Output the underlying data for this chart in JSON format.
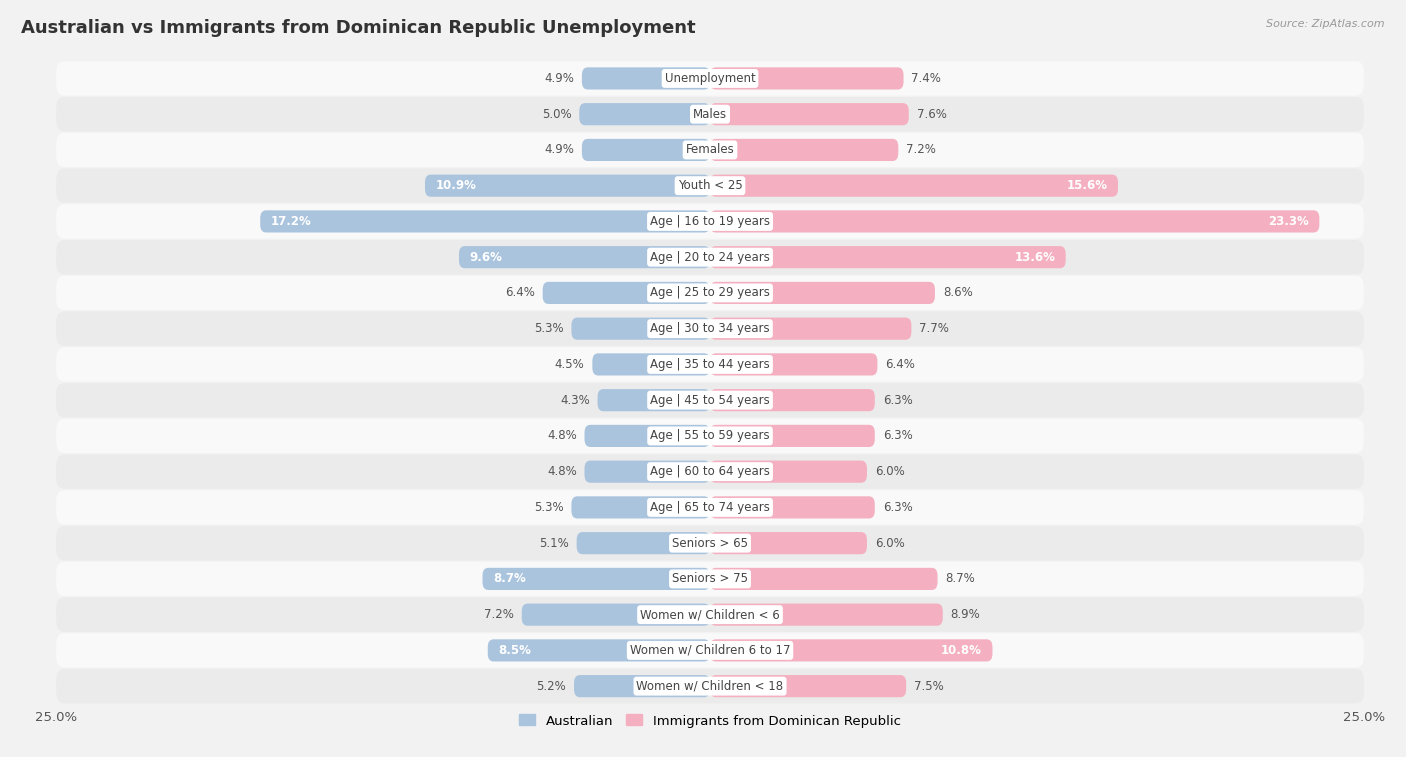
{
  "title": "Australian vs Immigrants from Dominican Republic Unemployment",
  "source": "Source: ZipAtlas.com",
  "categories": [
    "Unemployment",
    "Males",
    "Females",
    "Youth < 25",
    "Age | 16 to 19 years",
    "Age | 20 to 24 years",
    "Age | 25 to 29 years",
    "Age | 30 to 34 years",
    "Age | 35 to 44 years",
    "Age | 45 to 54 years",
    "Age | 55 to 59 years",
    "Age | 60 to 64 years",
    "Age | 65 to 74 years",
    "Seniors > 65",
    "Seniors > 75",
    "Women w/ Children < 6",
    "Women w/ Children 6 to 17",
    "Women w/ Children < 18"
  ],
  "australian": [
    4.9,
    5.0,
    4.9,
    10.9,
    17.2,
    9.6,
    6.4,
    5.3,
    4.5,
    4.3,
    4.8,
    4.8,
    5.3,
    5.1,
    8.7,
    7.2,
    8.5,
    5.2
  ],
  "dominican": [
    7.4,
    7.6,
    7.2,
    15.6,
    23.3,
    13.6,
    8.6,
    7.7,
    6.4,
    6.3,
    6.3,
    6.0,
    6.3,
    6.0,
    8.7,
    8.9,
    10.8,
    7.5
  ],
  "australian_color": "#aac4de",
  "dominican_color": "#f4afc0",
  "bg_color": "#f2f2f2",
  "row_light": "#f9f9f9",
  "row_dark": "#ebebeb",
  "xlim": 25.0,
  "label_australian": "Australian",
  "label_dominican": "Immigrants from Dominican Republic",
  "title_fontsize": 13,
  "label_fontsize": 8.5,
  "value_fontsize": 8.5,
  "source_fontsize": 8
}
